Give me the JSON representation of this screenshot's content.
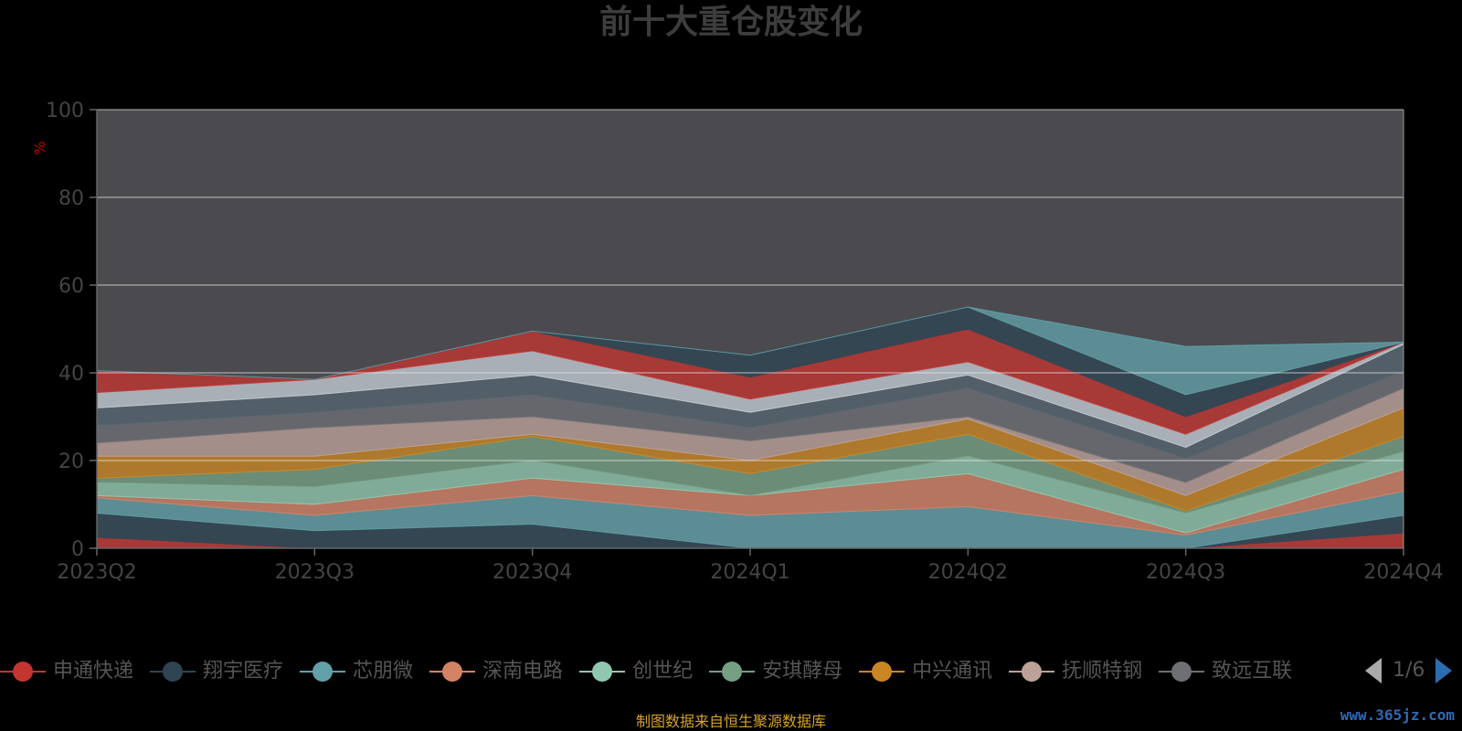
{
  "title": "前十大重仓股变化",
  "source": "制图数据来自恒生聚源数据库",
  "watermark": "www.365jz.com",
  "pager": {
    "text": "1/6"
  },
  "legend": [
    {
      "name": "申通快递",
      "color": "#c23531"
    },
    {
      "name": "翔宇医疗",
      "color": "#2f4554"
    },
    {
      "name": "芯朋微",
      "color": "#61a0a8"
    },
    {
      "name": "深南电路",
      "color": "#d48265"
    },
    {
      "name": "创世纪",
      "color": "#91c7ae"
    },
    {
      "name": "安琪酵母",
      "color": "#749f83"
    },
    {
      "name": "中兴通讯",
      "color": "#ca8622"
    },
    {
      "name": "抚顺特钢",
      "color": "#bda29a"
    },
    {
      "name": "致远互联",
      "color": "#6e7074"
    }
  ],
  "chart_data": {
    "type": "area",
    "title": "前十大重仓股变化",
    "ylabel": "%",
    "ylim": [
      0,
      100
    ],
    "yticks": [
      0,
      20,
      40,
      60,
      80,
      100
    ],
    "categories": [
      "2023Q2",
      "2023Q3",
      "2023Q4",
      "2024Q1",
      "2024Q2",
      "2024Q3",
      "2024Q4"
    ],
    "plot_bg": "#4b4b4f",
    "band_colors": [
      "#c23531",
      "#2f4554",
      "#61a0a8",
      "#d48265",
      "#91c7ae",
      "#749f83",
      "#ca8622",
      "#bda29a",
      "#6e7074",
      "#546570",
      "#c4ccd3"
    ],
    "stack_boundaries": [
      [
        0,
        0,
        0,
        0,
        0,
        0,
        0
      ],
      [
        2.5,
        0,
        0,
        0,
        0,
        0,
        3.5
      ],
      [
        8,
        4,
        5.5,
        0,
        0,
        0,
        7.5
      ],
      [
        11.5,
        7.5,
        12,
        7.5,
        9.5,
        3,
        13
      ],
      [
        12,
        10,
        16,
        12,
        17,
        3.5,
        18
      ],
      [
        15,
        14,
        20,
        12,
        21,
        8,
        22
      ],
      [
        16,
        18,
        25.5,
        17,
        26,
        8.5,
        25.5
      ],
      [
        21,
        21,
        26,
        20,
        29.5,
        12,
        32
      ],
      [
        24,
        27.5,
        30,
        24.5,
        30,
        15,
        36.5
      ],
      [
        28,
        31,
        35,
        27.5,
        36.5,
        20.5,
        40.5
      ],
      [
        32,
        35,
        39.5,
        31,
        39.5,
        23,
        46.5
      ],
      [
        35.5,
        38.5,
        45,
        34,
        42.5,
        26,
        47
      ],
      [
        40.5,
        38.5,
        49.5,
        39,
        50,
        30,
        47
      ],
      [
        40.5,
        38.5,
        49.5,
        44,
        55,
        35,
        47
      ],
      [
        40.5,
        38.5,
        49.5,
        44,
        55,
        46,
        47
      ]
    ]
  }
}
